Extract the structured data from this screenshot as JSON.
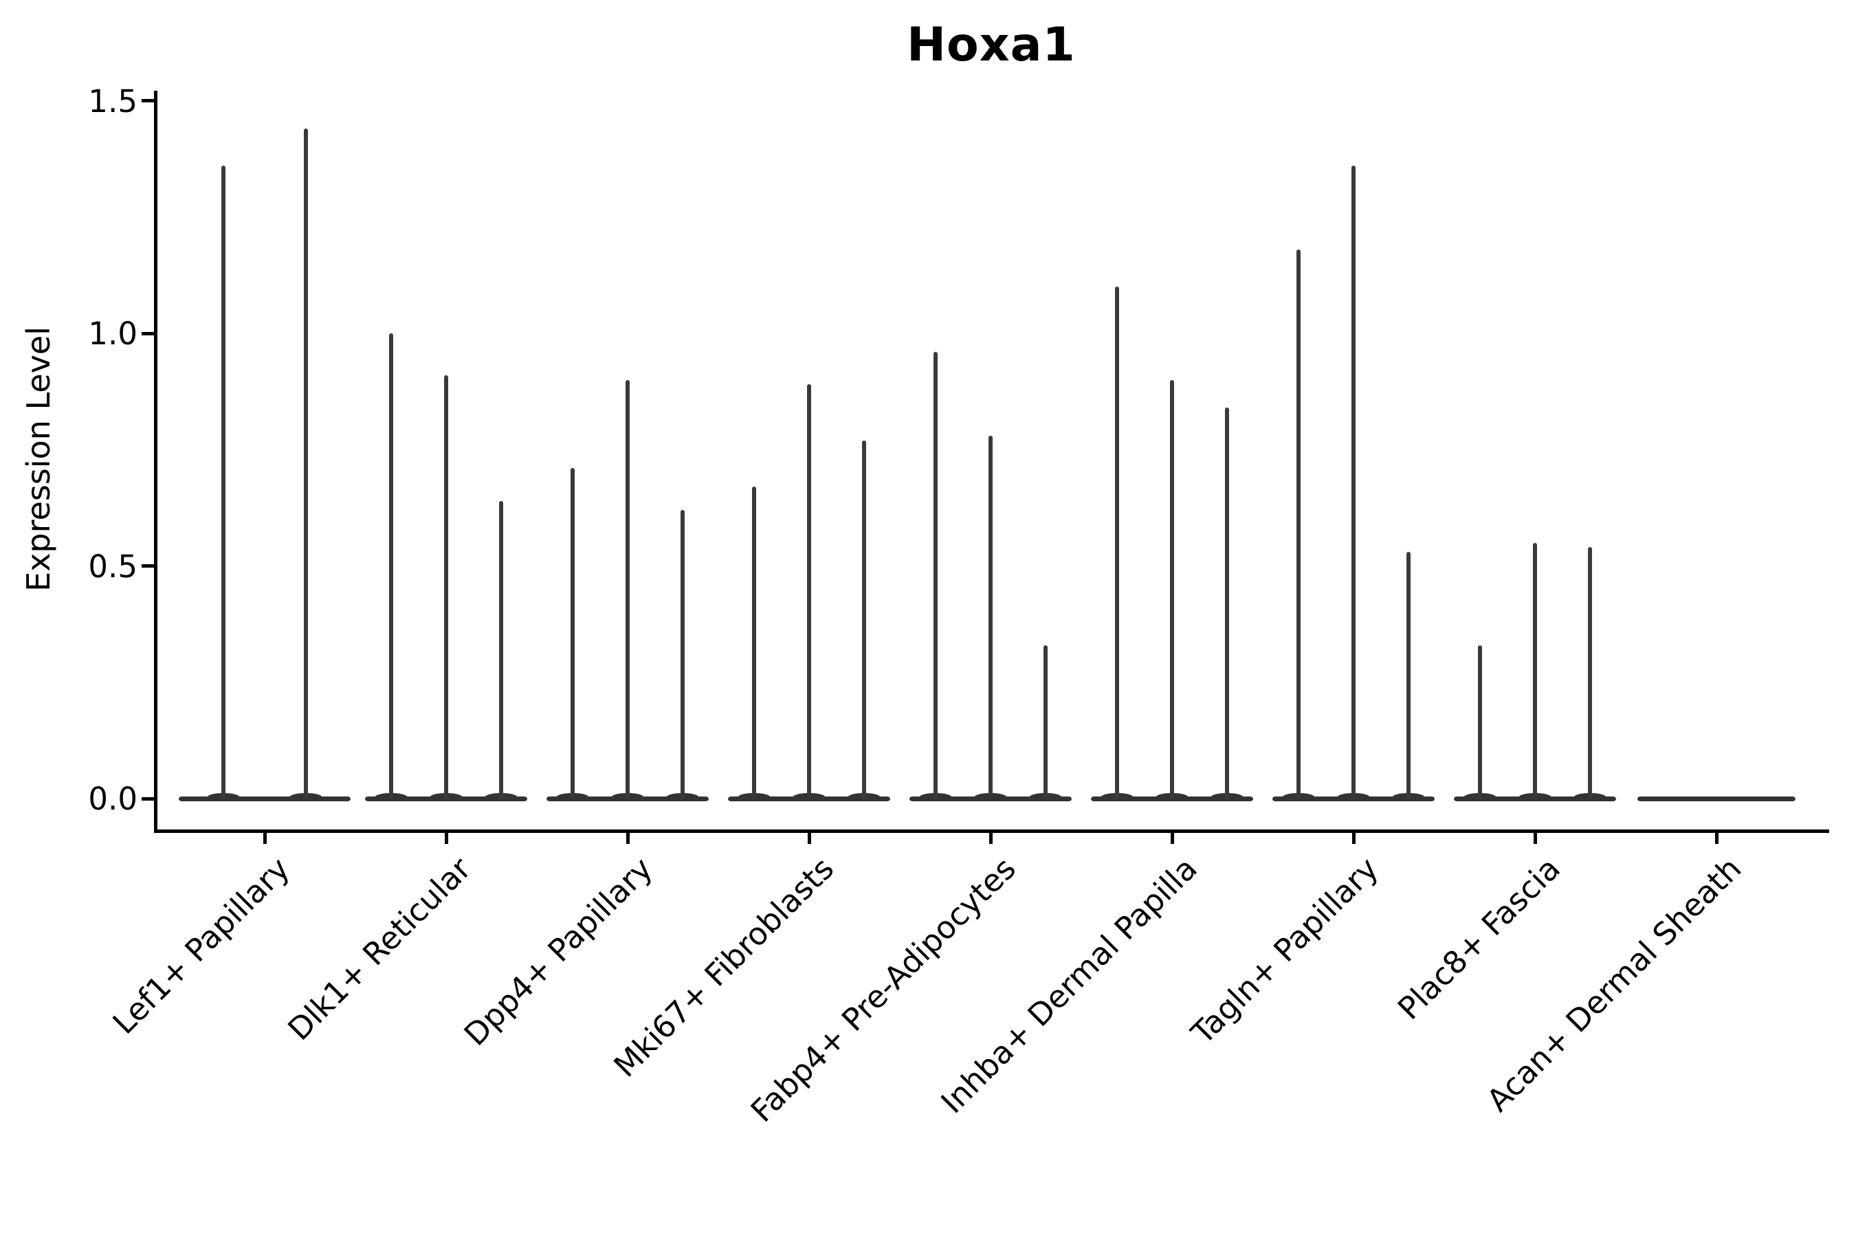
{
  "title": "Hoxa1",
  "y_axis": {
    "label": "Expression Level",
    "tick_labels": [
      "0.0",
      "0.5",
      "1.0",
      "1.5"
    ]
  },
  "x_axis": {
    "tick_labels": [
      "Lef1+ Papillary",
      "Dlk1+ Reticular",
      "Dpp4+ Papillary",
      "Mki67+ Fibroblasts",
      "Fabp4+ Pre-Adipocytes",
      "Inhba+ Dermal Papilla",
      "Tagln+ Papillary",
      "Plac8+ Fascia",
      "Acan+ Dermal Sheath"
    ]
  },
  "colors": {
    "background": "#ffffff",
    "axis": "#000000",
    "text": "#000000",
    "violin_line": "#3a3a3a",
    "violin_body": "#333333"
  },
  "chart_data": {
    "type": "violin",
    "title": "Hoxa1",
    "xlabel": "",
    "ylabel": "Expression Level",
    "ylim": [
      0,
      1.5
    ],
    "yticks": [
      0,
      0.5,
      1.0,
      1.5
    ],
    "grid": false,
    "legend": "none",
    "categories": [
      "Lef1+ Papillary",
      "Dlk1+ Reticular",
      "Dpp4+ Papillary",
      "Mki67+ Fibroblasts",
      "Fabp4+ Pre-Adipocytes",
      "Inhba+ Dermal Papilla",
      "Tagln+ Papillary",
      "Plac8+ Fascia",
      "Acan+ Dermal Sheath"
    ],
    "groups": [
      {
        "category": "Lef1+ Papillary",
        "violin_peaks": [
          1.36,
          1.44
        ]
      },
      {
        "category": "Dlk1+ Reticular",
        "violin_peaks": [
          1.0,
          0.91,
          0.64
        ]
      },
      {
        "category": "Dpp4+ Papillary",
        "violin_peaks": [
          0.71,
          0.9,
          0.62
        ]
      },
      {
        "category": "Mki67+ Fibroblasts",
        "violin_peaks": [
          0.67,
          0.89,
          0.77
        ]
      },
      {
        "category": "Fabp4+ Pre-Adipocytes",
        "violin_peaks": [
          0.96,
          0.78,
          0.33
        ]
      },
      {
        "category": "Inhba+ Dermal Papilla",
        "violin_peaks": [
          1.1,
          0.9,
          0.84
        ]
      },
      {
        "category": "Tagln+ Papillary",
        "violin_peaks": [
          1.18,
          1.36,
          0.53
        ]
      },
      {
        "category": "Plac8+ Fascia",
        "violin_peaks": [
          0.33,
          0.55,
          0.54
        ]
      },
      {
        "category": "Acan+ Dermal Sheath",
        "violin_peaks": []
      }
    ]
  }
}
